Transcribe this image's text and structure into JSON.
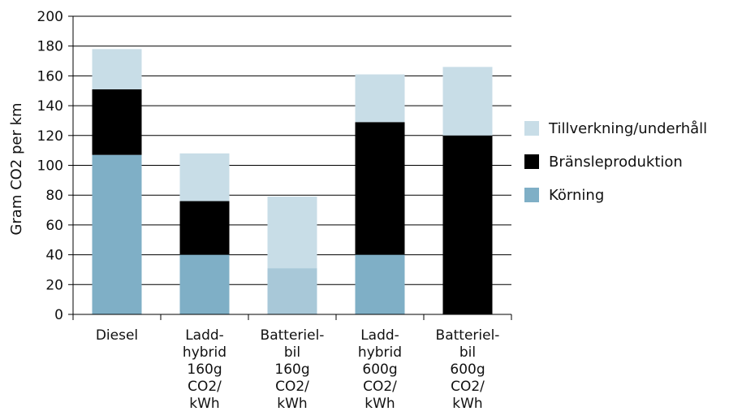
{
  "chart_data": {
    "type": "bar",
    "stacked": true,
    "ylabel": "Gram CO2 per km",
    "ylim": [
      0,
      200
    ],
    "yticks": [
      0,
      20,
      40,
      60,
      80,
      100,
      120,
      140,
      160,
      180,
      200
    ],
    "grid": true,
    "legend_position": "right",
    "categories": [
      "Diesel",
      "Ladd-\nhybrid\n160g\nCO2/\nkWh",
      "Batteriel-\nbil\n160g\nCO2/\nkWh",
      "Ladd-\nhybrid\n600g\nCO2/\nkWh",
      "Batteriel-\nbil\n600g\nCO2/\nkWh"
    ],
    "series": [
      {
        "name": "Körning",
        "color": "#7fafc6",
        "values": [
          107,
          40,
          0,
          40,
          0
        ]
      },
      {
        "name": "Bränsleproduktion",
        "color": "#000000",
        "values": [
          44,
          36,
          0,
          89,
          120
        ]
      },
      {
        "name": "Tillverkning/underhåll",
        "color": "#c8dde7",
        "values": [
          27,
          32,
          79,
          32,
          46
        ]
      }
    ],
    "notes": "Batteriel-bil 160g bar is drawn with a lighter blue lower segment (~31) under the light segment; values recorded as total.",
    "special_segments": [
      {
        "category_index": 2,
        "lower_value": 31,
        "lower_color": "#a8c8d8",
        "upper_color": "#c8dde7"
      }
    ]
  }
}
